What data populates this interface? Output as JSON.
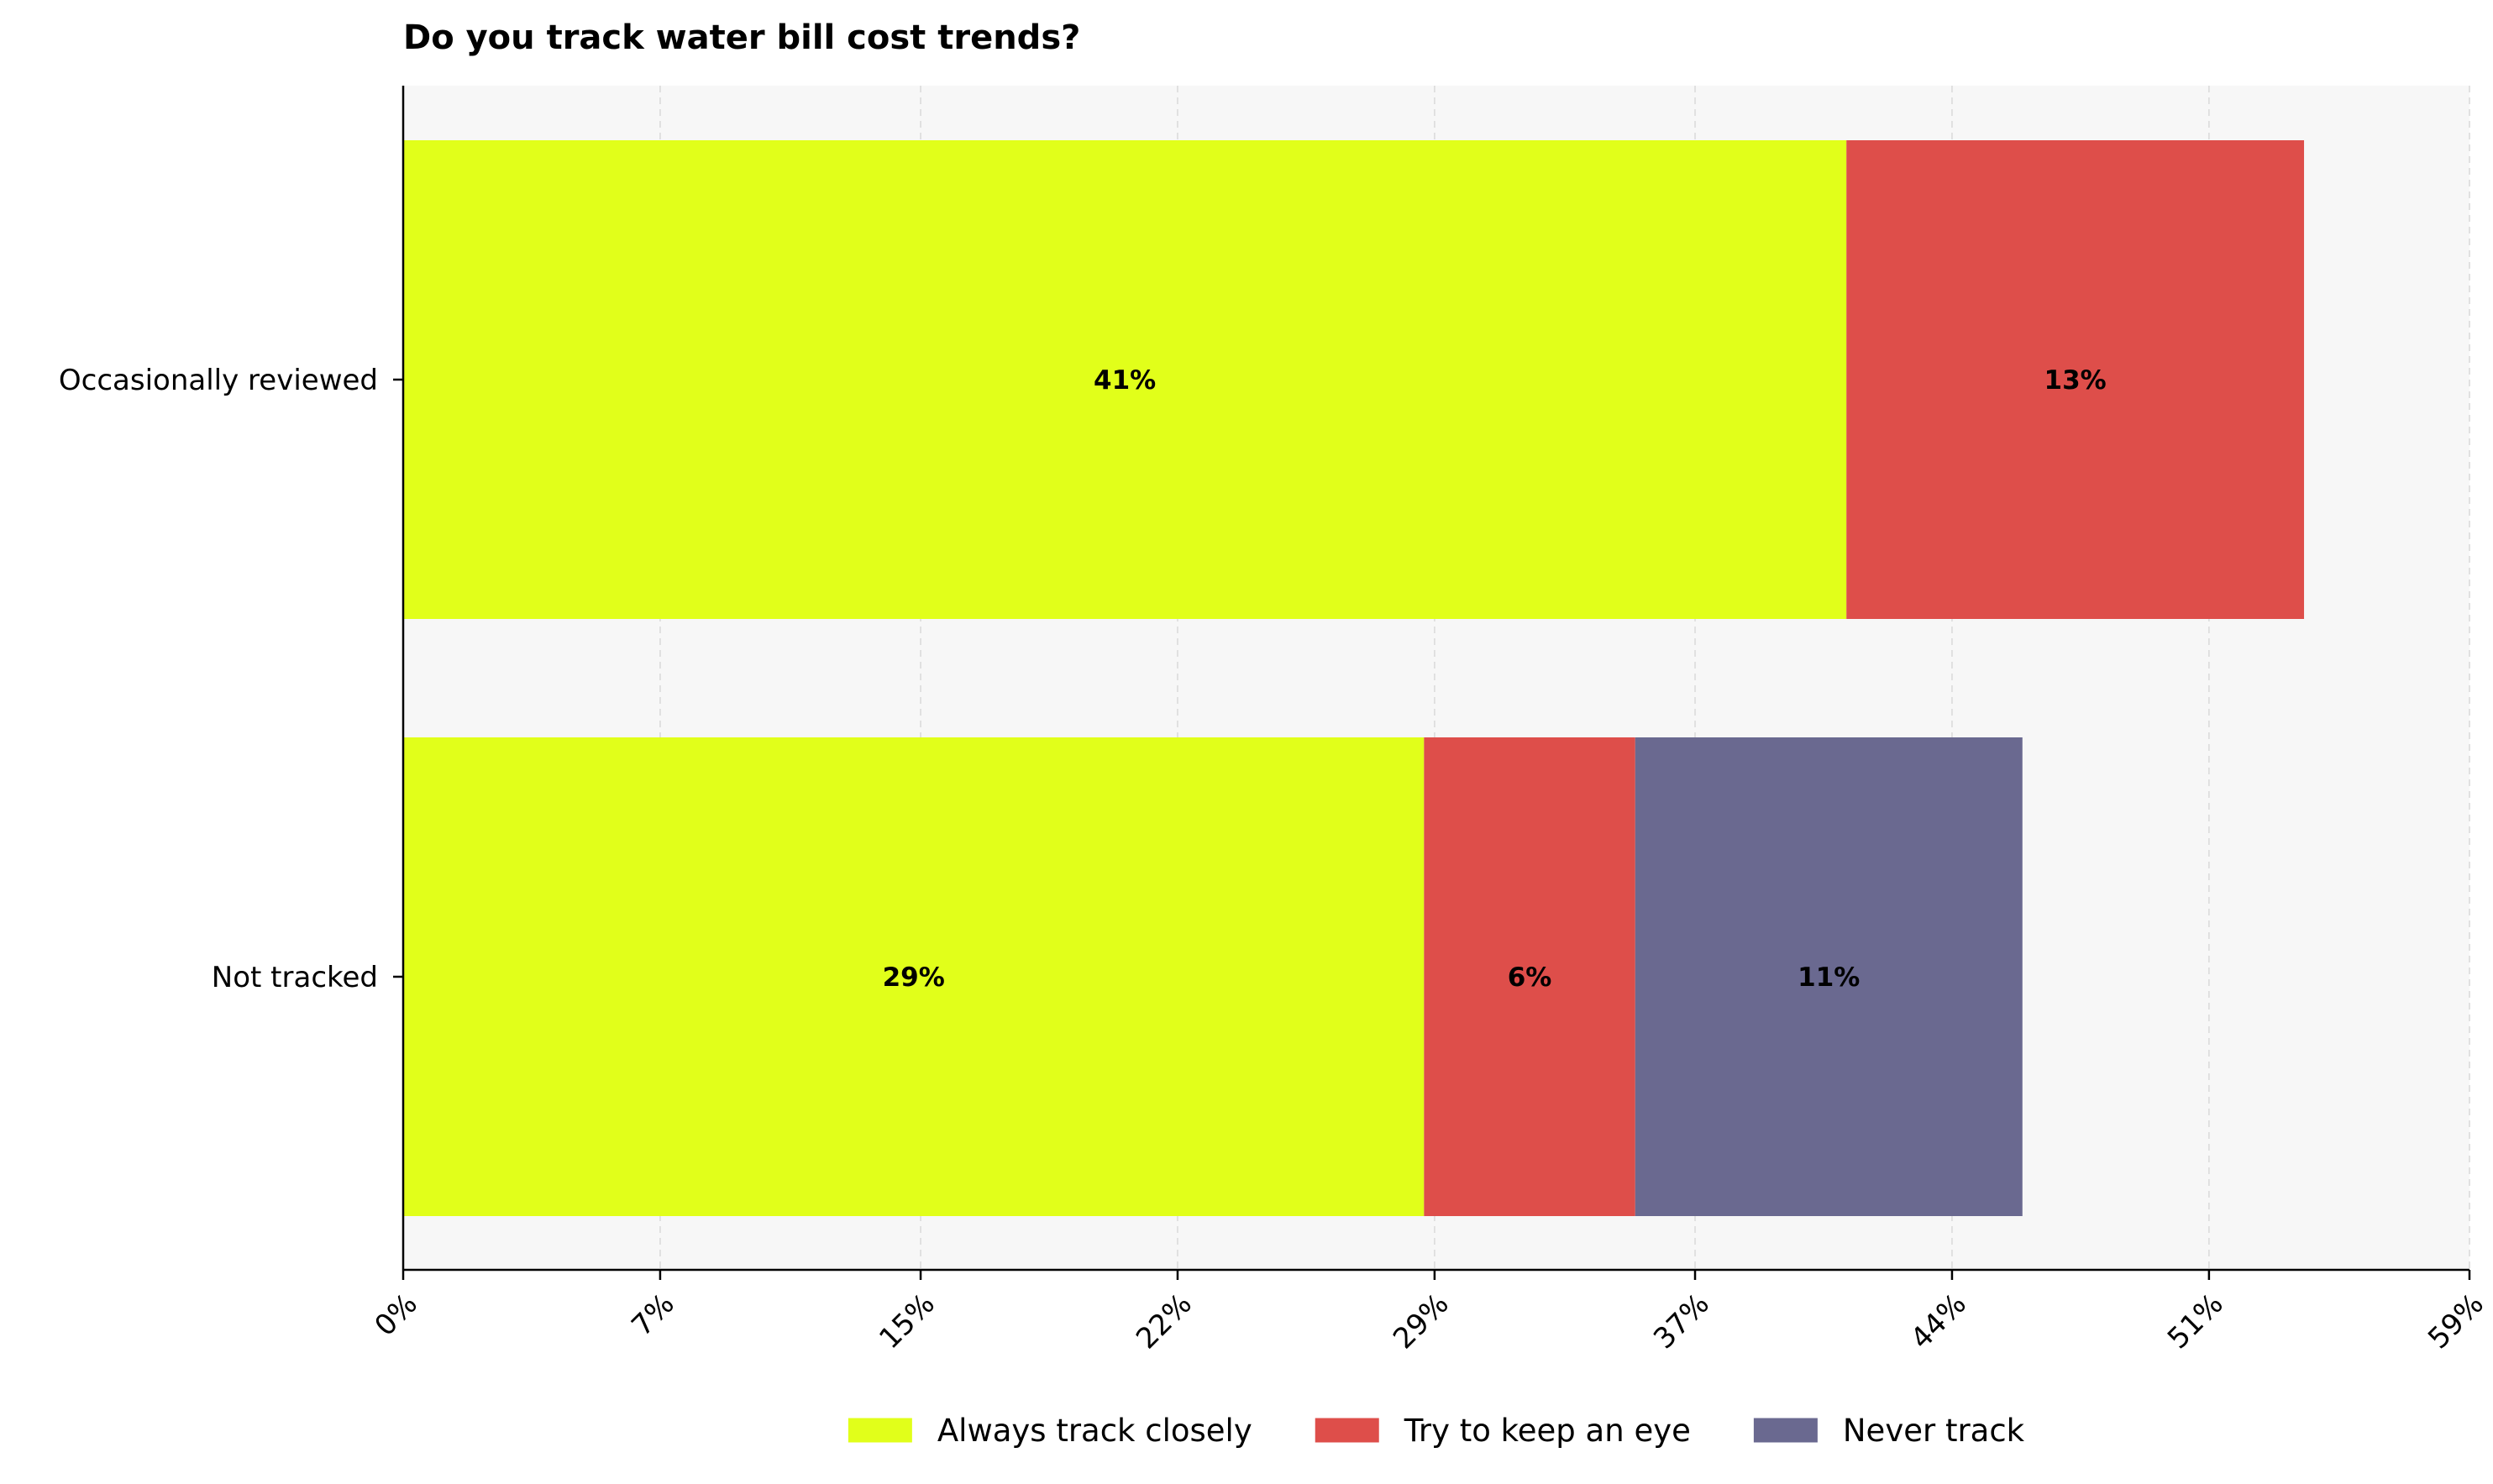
{
  "chart_data": {
    "type": "bar",
    "orientation": "horizontal",
    "stacked": true,
    "title": "Do you track water bill cost trends?",
    "xlabel": "",
    "ylabel": "",
    "categories": [
      "Occasionally reviewed",
      "Not tracked"
    ],
    "series": [
      {
        "name": "Always track closely",
        "color": "#e1ff1a",
        "values": [
          41,
          29
        ],
        "labels": [
          "41%",
          "29%"
        ]
      },
      {
        "name": "Try to keep an eye",
        "color": "#de4e4a",
        "values": [
          13,
          6
        ],
        "labels": [
          "13%",
          "6%"
        ]
      },
      {
        "name": "Never track",
        "color": "#6a6990",
        "values": [
          0,
          11
        ],
        "labels": [
          "",
          "11%"
        ]
      }
    ],
    "xlim": [
      0,
      58.7
    ],
    "xticks": [
      0,
      7.3,
      14.7,
      22,
      29.3,
      36.7,
      44,
      51.3,
      58.7
    ],
    "xtick_labels": [
      "0%",
      "7%",
      "15%",
      "22%",
      "29%",
      "37%",
      "44%",
      "51%",
      "59%"
    ],
    "grid": "x-dashed",
    "plot_background": "#f7f7f7",
    "legend_position": "bottom-center"
  }
}
